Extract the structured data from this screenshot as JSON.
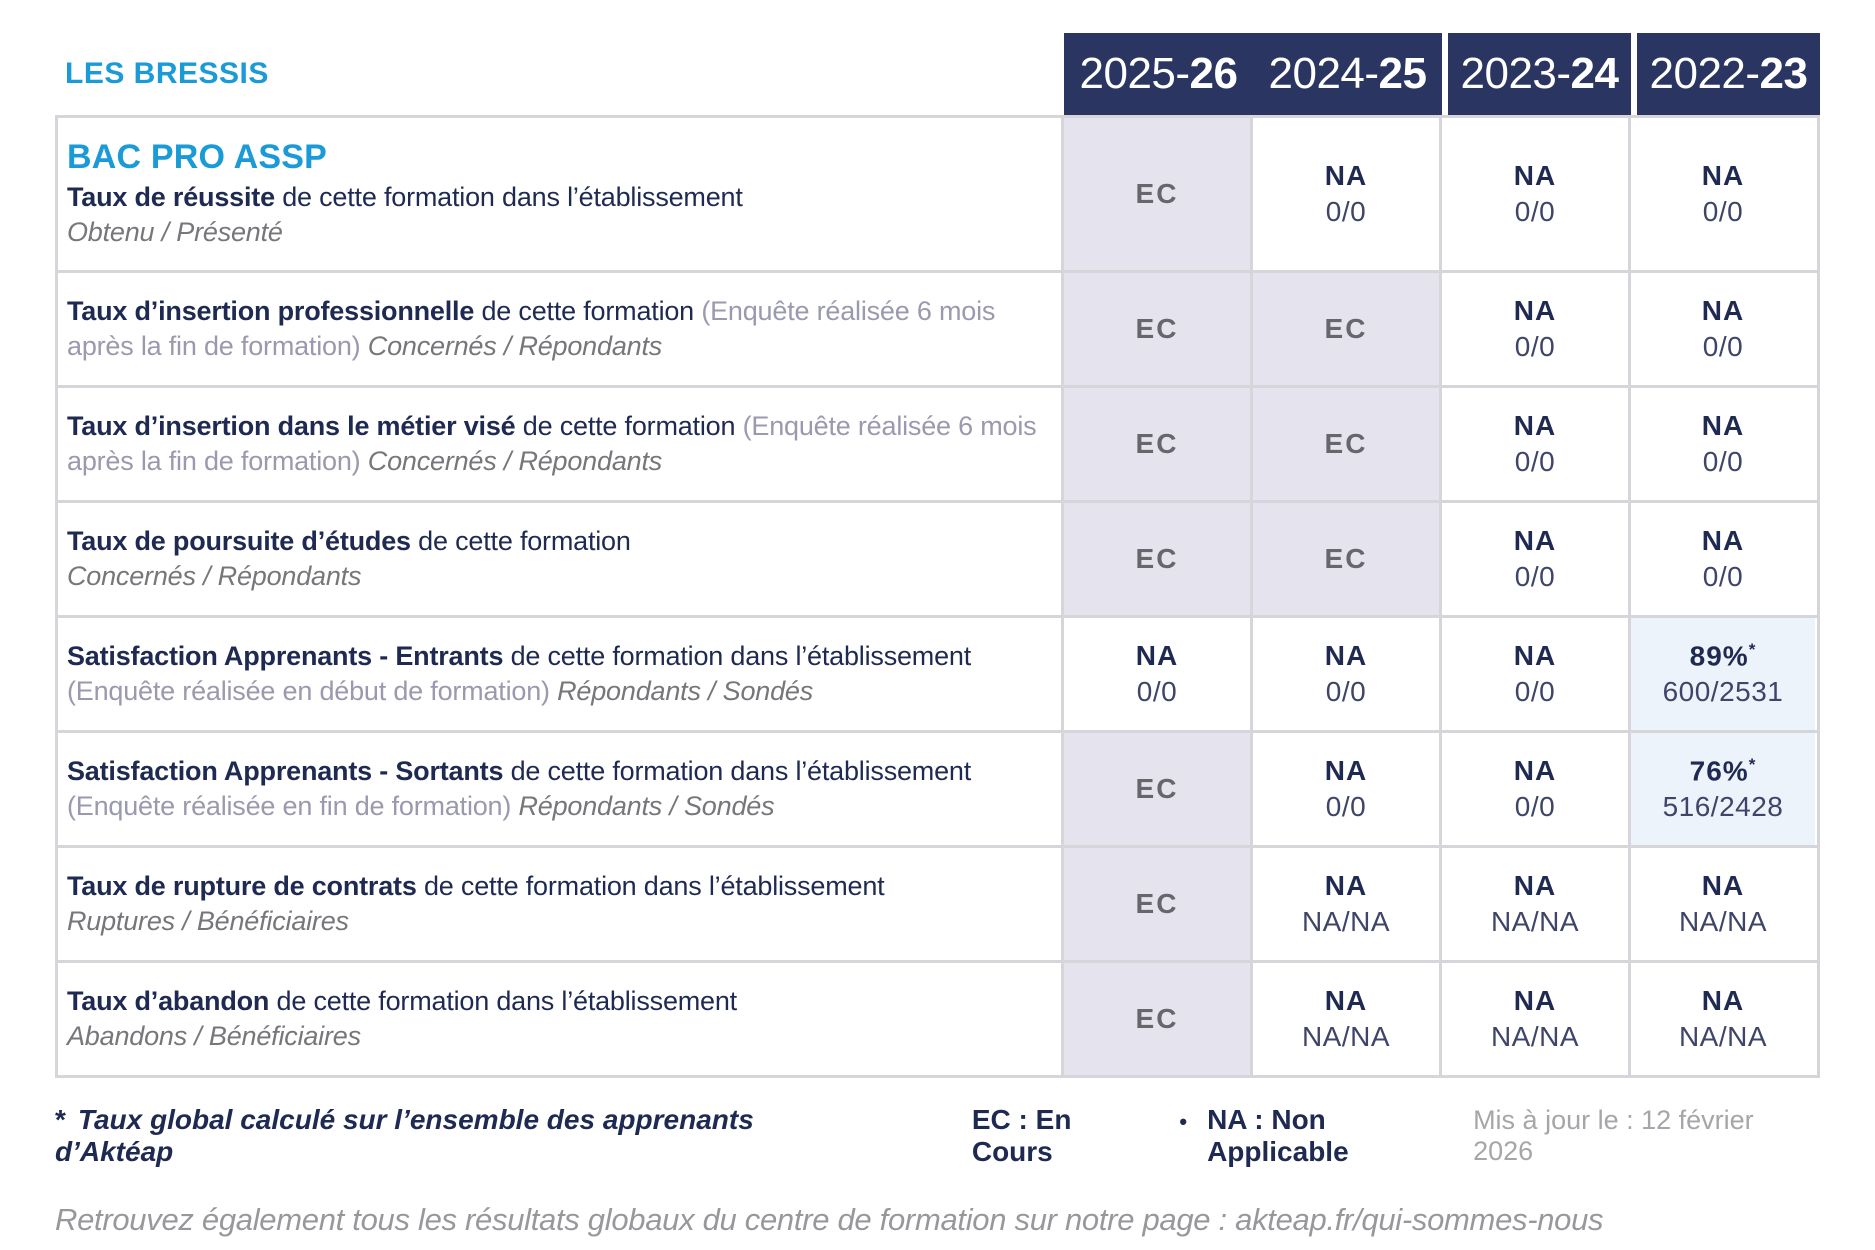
{
  "brand": {
    "site_label": "LES BRESSIS"
  },
  "columns": [
    {
      "label_prefix": "2025-",
      "label_suffix": "26"
    },
    {
      "label_prefix": "2024-",
      "label_suffix": "25"
    },
    {
      "label_prefix": "2023-",
      "label_suffix": "24"
    },
    {
      "label_prefix": "2022-",
      "label_suffix": "23"
    }
  ],
  "rows": [
    {
      "program_title": "BAC PRO ASSP",
      "title": "Taux de réussite",
      "desc": "de cette formation dans l’établissement",
      "paren": "",
      "sub": "Obtenu / Présenté",
      "sub_on_new_line": true,
      "cells": [
        {
          "main": "EC",
          "sub": "",
          "style": "ec"
        },
        {
          "main": "NA",
          "sub": "0/0",
          "style": "na"
        },
        {
          "main": "NA",
          "sub": "0/0",
          "style": "na"
        },
        {
          "main": "NA",
          "sub": "0/0",
          "style": "na"
        }
      ]
    },
    {
      "title": "Taux d’insertion professionnelle",
      "desc": "de cette formation",
      "paren": "(Enquête réalisée 6 mois après la fin de formation)",
      "sub": "Concernés / Répondants",
      "sub_on_new_line": false,
      "cells": [
        {
          "main": "EC",
          "sub": "",
          "style": "ec"
        },
        {
          "main": "EC",
          "sub": "",
          "style": "ec"
        },
        {
          "main": "NA",
          "sub": "0/0",
          "style": "na"
        },
        {
          "main": "NA",
          "sub": "0/0",
          "style": "na"
        }
      ]
    },
    {
      "title": "Taux d’insertion dans le métier visé",
      "desc": "de cette formation",
      "paren": "(Enquête réalisée 6 mois après la fin de formation)",
      "sub": "Concernés / Répondants",
      "sub_on_new_line": false,
      "cells": [
        {
          "main": "EC",
          "sub": "",
          "style": "ec"
        },
        {
          "main": "EC",
          "sub": "",
          "style": "ec"
        },
        {
          "main": "NA",
          "sub": "0/0",
          "style": "na"
        },
        {
          "main": "NA",
          "sub": "0/0",
          "style": "na"
        }
      ]
    },
    {
      "title": "Taux de poursuite d’études",
      "desc": "de cette formation",
      "paren": "",
      "sub": "Concernés / Répondants",
      "sub_on_new_line": true,
      "cells": [
        {
          "main": "EC",
          "sub": "",
          "style": "ec"
        },
        {
          "main": "EC",
          "sub": "",
          "style": "ec"
        },
        {
          "main": "NA",
          "sub": "0/0",
          "style": "na"
        },
        {
          "main": "NA",
          "sub": "0/0",
          "style": "na"
        }
      ]
    },
    {
      "title": "Satisfaction Apprenants - Entrants",
      "desc": "de cette formation dans l’établissement",
      "paren": "(Enquête réalisée en début de formation)",
      "sub": "Répondants / Sondés",
      "sub_on_new_line": false,
      "cells": [
        {
          "main": "NA",
          "sub": "0/0",
          "style": "na"
        },
        {
          "main": "NA",
          "sub": "0/0",
          "style": "na"
        },
        {
          "main": "NA",
          "sub": "0/0",
          "style": "na"
        },
        {
          "main": "89%",
          "star": "*",
          "sub": "600/2531",
          "style": "highlight"
        }
      ]
    },
    {
      "title": "Satisfaction Apprenants - Sortants",
      "desc": "de cette formation dans l’établissement",
      "paren": "(Enquête réalisée en fin de formation)",
      "sub": "Répondants / Sondés",
      "sub_on_new_line": false,
      "cells": [
        {
          "main": "EC",
          "sub": "",
          "style": "ec"
        },
        {
          "main": "NA",
          "sub": "0/0",
          "style": "na"
        },
        {
          "main": "NA",
          "sub": "0/0",
          "style": "na"
        },
        {
          "main": "76%",
          "star": "*",
          "sub": "516/2428",
          "style": "highlight"
        }
      ]
    },
    {
      "title": "Taux de rupture de contrats",
      "desc": "de cette formation dans l’établissement",
      "paren": "",
      "sub": "Ruptures / Bénéficiaires",
      "sub_on_new_line": true,
      "cells": [
        {
          "main": "EC",
          "sub": "",
          "style": "ec"
        },
        {
          "main": "NA",
          "sub": "NA/NA",
          "style": "na"
        },
        {
          "main": "NA",
          "sub": "NA/NA",
          "style": "na"
        },
        {
          "main": "NA",
          "sub": "NA/NA",
          "style": "na"
        }
      ]
    },
    {
      "title": "Taux d’abandon",
      "desc": "de cette formation dans l’établissement",
      "paren": "",
      "sub": "Abandons / Bénéficiaires",
      "sub_on_new_line": true,
      "cells": [
        {
          "main": "EC",
          "sub": "",
          "style": "ec"
        },
        {
          "main": "NA",
          "sub": "NA/NA",
          "style": "na"
        },
        {
          "main": "NA",
          "sub": "NA/NA",
          "style": "na"
        },
        {
          "main": "NA",
          "sub": "NA/NA",
          "style": "na"
        }
      ]
    }
  ],
  "footer": {
    "star": "*",
    "footnote": "Taux global calculé sur l’ensemble des apprenants d’Aktéap",
    "legend": [
      "EC : En Cours",
      "NA : Non Applicable"
    ],
    "legend_separator": "•",
    "updated": "Mis à jour le : 12 février 2026",
    "bottom_note": "Retrouvez également tous les résultats globaux du centre de formation sur notre page : akteap.fr/qui-sommes-nous"
  },
  "colors": {
    "accent_blue": "#1a9ad6",
    "header_navy": "#2b3561",
    "text_navy": "#1f2a52",
    "ec_text": "#68666c",
    "ec_bg": "#e5e4ee",
    "highlight_bg": "#edf3fa",
    "sub_value": "#3e4568",
    "muted_grey": "#77767a",
    "paren_grey": "#9a99ae",
    "border_grey": "#d6d5da",
    "updated_grey": "#a6a5a9"
  }
}
